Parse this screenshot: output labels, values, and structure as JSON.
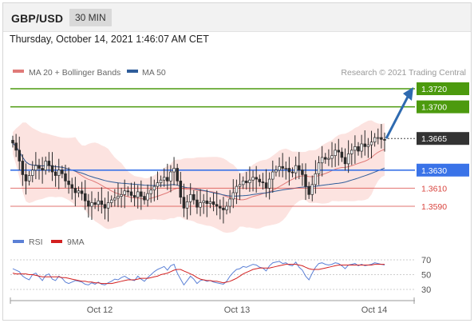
{
  "header": {
    "pair": "GBP/USD",
    "timeframe": "30 MIN"
  },
  "timestamp": "Thursday, October 14, 2021 1:46:07 AM CET",
  "legend": {
    "ma20": "MA 20 + Bollinger Bands",
    "ma50": "MA 50",
    "credit": "Research © 2021 Trading Central"
  },
  "rsi_legend": {
    "rsi": "RSI",
    "ma9": "9MA"
  },
  "colors": {
    "resistance": "#4c9a0e",
    "current": "#333333",
    "pivot": "#3a73e8",
    "support": "#d9453f",
    "ma20": "#e07a78",
    "ma50": "#2f5d9a",
    "bands": "#fbd9d6",
    "arrow": "#2e6ab0",
    "rsi": "#5b80d6",
    "rsi_ma": "#d32020"
  },
  "chart_data": {
    "type": "candlestick",
    "title": "GBP/USD",
    "timeframe": "30 MIN",
    "ylim": [
      1.3565,
      1.374
    ],
    "x_ticks": [
      "Oct 12",
      "Oct 13",
      "Oct 14"
    ],
    "levels": [
      {
        "value": 1.372,
        "label": "1.3720",
        "kind": "resistance"
      },
      {
        "value": 1.37,
        "label": "1.3700",
        "kind": "resistance"
      },
      {
        "value": 1.3665,
        "label": "1.3665",
        "kind": "current"
      },
      {
        "value": 1.363,
        "label": "1.3630",
        "kind": "pivot"
      },
      {
        "value": 1.361,
        "label": "1.3610",
        "kind": "support"
      },
      {
        "value": 1.359,
        "label": "1.3590",
        "kind": "support"
      }
    ],
    "target_arrow": {
      "from": 1.3665,
      "to": 1.372
    },
    "close": [
      1.366,
      1.3652,
      1.364,
      1.3625,
      1.3618,
      1.3624,
      1.363,
      1.3635,
      1.3632,
      1.363,
      1.364,
      1.3635,
      1.3628,
      1.3624,
      1.363,
      1.3626,
      1.3618,
      1.3614,
      1.361,
      1.3605,
      1.3607,
      1.3604,
      1.3596,
      1.359,
      1.3594,
      1.3592,
      1.3596,
      1.3592,
      1.3588,
      1.3594,
      1.3597,
      1.3599,
      1.3601,
      1.3603,
      1.3607,
      1.3606,
      1.3602,
      1.36,
      1.3606,
      1.3601,
      1.3597,
      1.3604,
      1.3608,
      1.3612,
      1.3616,
      1.3619,
      1.3622,
      1.3618,
      1.3628,
      1.3632,
      1.3618,
      1.36,
      1.3588,
      1.3595,
      1.3603,
      1.3597,
      1.3589,
      1.3594,
      1.3596,
      1.3593,
      1.3595,
      1.3592,
      1.359,
      1.3588,
      1.3586,
      1.359,
      1.3598,
      1.3605,
      1.3612,
      1.3614,
      1.3618,
      1.3616,
      1.3619,
      1.3622,
      1.362,
      1.3617,
      1.3616,
      1.361,
      1.362,
      1.3628,
      1.363,
      1.3634,
      1.3632,
      1.3632,
      1.3628,
      1.3627,
      1.3635,
      1.363,
      1.3625,
      1.3612,
      1.3603,
      1.3614,
      1.3626,
      1.3638,
      1.3644,
      1.3642,
      1.3643,
      1.3646,
      1.3652,
      1.365,
      1.3644,
      1.3637,
      1.3648,
      1.3652,
      1.3656,
      1.3651,
      1.3659,
      1.3656,
      1.3658,
      1.3661,
      1.3666,
      1.3666,
      1.3664,
      1.3663
    ],
    "rsi": {
      "levels": [
        70,
        50,
        30
      ],
      "rsi": [
        58,
        56,
        54,
        48,
        45,
        43,
        50,
        52,
        47,
        42,
        49,
        51,
        44,
        42,
        48,
        45,
        40,
        38,
        40,
        42,
        41,
        40,
        37,
        36,
        39,
        37,
        40,
        37,
        36,
        39,
        41,
        44,
        43,
        46,
        48,
        45,
        43,
        42,
        48,
        44,
        41,
        46,
        50,
        54,
        57,
        59,
        61,
        56,
        62,
        64,
        52,
        44,
        36,
        42,
        48,
        44,
        38,
        42,
        43,
        41,
        42,
        40,
        39,
        38,
        37,
        41,
        48,
        53,
        57,
        58,
        61,
        60,
        62,
        64,
        63,
        60,
        59,
        55,
        62,
        66,
        67,
        68,
        65,
        66,
        63,
        62,
        67,
        60,
        56,
        48,
        43,
        52,
        60,
        65,
        66,
        64,
        63,
        64,
        66,
        65,
        62,
        58,
        63,
        64,
        65,
        62,
        64,
        62,
        63,
        64,
        66,
        65,
        64,
        63
      ],
      "ma9": [
        52,
        51,
        51,
        51,
        51,
        50,
        50,
        49,
        48,
        47,
        47,
        47,
        47,
        47,
        47,
        46,
        46,
        45,
        44,
        43,
        42,
        41,
        41,
        40,
        40,
        39,
        39,
        38,
        38,
        38,
        38,
        39,
        40,
        41,
        42,
        43,
        43,
        43,
        44,
        45,
        45,
        45,
        46,
        47,
        48,
        50,
        51,
        52,
        54,
        56,
        57,
        57,
        55,
        53,
        51,
        49,
        46,
        44,
        43,
        42,
        42,
        41,
        41,
        40,
        39,
        40,
        41,
        43,
        45,
        48,
        51,
        53,
        55,
        57,
        58,
        59,
        59,
        59,
        59,
        60,
        61,
        62,
        63,
        64,
        64,
        64,
        64,
        63,
        62,
        60,
        58,
        57,
        57,
        57,
        58,
        59,
        60,
        61,
        62,
        63,
        63,
        63,
        63,
        63,
        63,
        63,
        63,
        63,
        63,
        63,
        64,
        64,
        64,
        64
      ]
    }
  }
}
